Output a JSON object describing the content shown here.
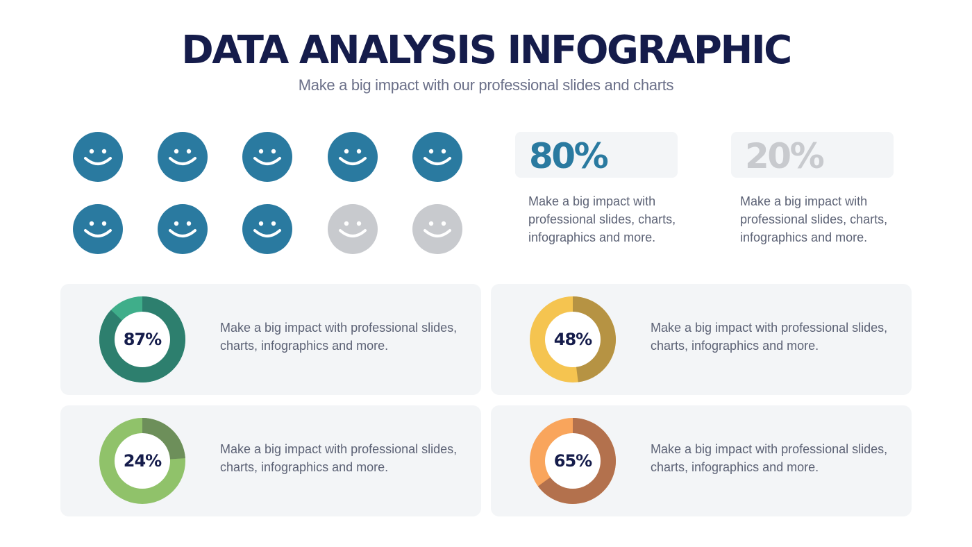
{
  "header": {
    "title": "DATA ANALYSIS INFOGRAPHIC",
    "subtitle": "Make a big impact with our professional slides and charts"
  },
  "faces": {
    "total": 10,
    "filled": 8,
    "filled_color": "#2a7aa0",
    "empty_color": "#c8cace",
    "icon": "smiley-face-icon"
  },
  "stats": [
    {
      "value": "80%",
      "color": "#2a7aa0",
      "description": "Make a big impact with professional slides, charts, infographics and more."
    },
    {
      "value": "20%",
      "color": "#c8cace",
      "description": "Make a big impact with professional slides, charts, infographics and more."
    }
  ],
  "chart_data": {
    "type": "pie",
    "items": [
      {
        "label": "87%",
        "value": 87,
        "color_main": "#2d7f6e",
        "color_rest": "#3fae8a",
        "text": "Make a big impact with professional slides, charts, infographics and more."
      },
      {
        "label": "48%",
        "value": 48,
        "color_main": "#b69343",
        "color_rest": "#f5c450",
        "text": "Make a big impact with professional slides, charts, infographics and more."
      },
      {
        "label": "24%",
        "value": 24,
        "color_main": "#6d8f5a",
        "color_rest": "#90c26a",
        "text": "Make a big impact with professional slides, charts, infographics and more."
      },
      {
        "label": "65%",
        "value": 65,
        "color_main": "#b3714d",
        "color_rest": "#f9a55c",
        "text": "Make a big impact with professional slides, charts, infographics and more."
      }
    ]
  }
}
